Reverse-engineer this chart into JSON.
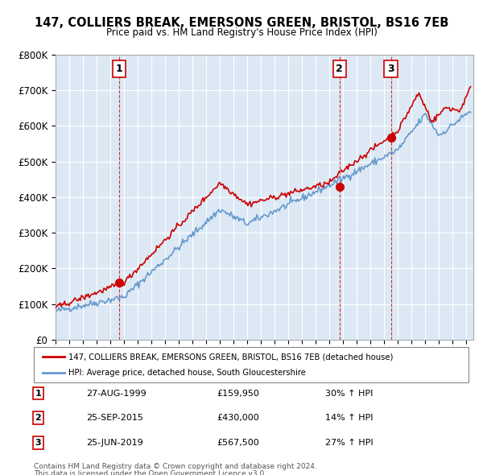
{
  "title": "147, COLLIERS BREAK, EMERSONS GREEN, BRISTOL, BS16 7EB",
  "subtitle": "Price paid vs. HM Land Registry's House Price Index (HPI)",
  "background_color": "#dce9f5",
  "plot_bg_color": "#dce9f5",
  "ylim": [
    0,
    800000
  ],
  "yticks": [
    0,
    100000,
    200000,
    300000,
    400000,
    500000,
    600000,
    700000,
    800000
  ],
  "ytick_labels": [
    "£0",
    "£100K",
    "£200K",
    "£300K",
    "£400K",
    "£500K",
    "£600K",
    "£700K",
    "£800K"
  ],
  "xlim_start": 1995.0,
  "xlim_end": 2025.5,
  "red_line_color": "#cc0000",
  "blue_line_color": "#6699cc",
  "purchase_marker_color": "#cc0000",
  "purchases": [
    {
      "num": 1,
      "year": 1999.65,
      "price": 159950,
      "date": "27-AUG-1999",
      "hpi_change": "30% ↑ HPI"
    },
    {
      "num": 2,
      "year": 2015.73,
      "price": 430000,
      "date": "25-SEP-2015",
      "hpi_change": "14% ↑ HPI"
    },
    {
      "num": 3,
      "year": 2019.48,
      "price": 567500,
      "date": "25-JUN-2019",
      "hpi_change": "27% ↑ HPI"
    }
  ],
  "legend_label_red": "147, COLLIERS BREAK, EMERSONS GREEN, BRISTOL, BS16 7EB (detached house)",
  "legend_label_blue": "HPI: Average price, detached house, South Gloucestershire",
  "footer_line1": "Contains HM Land Registry data © Crown copyright and database right 2024.",
  "footer_line2": "This data is licensed under the Open Government Licence v3.0."
}
